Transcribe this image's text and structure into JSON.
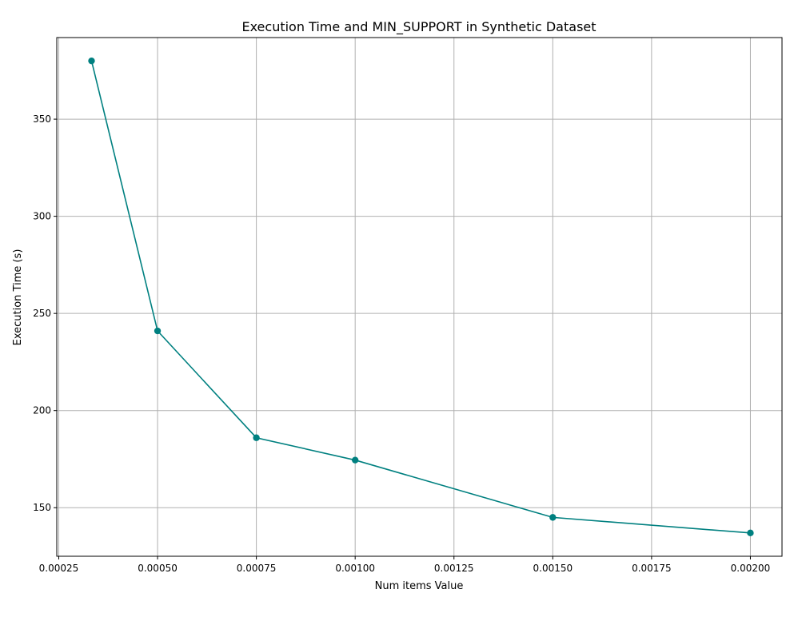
{
  "chart_data": {
    "type": "line",
    "title": "Execution Time and MIN_SUPPORT in Synthetic Dataset",
    "xlabel": "Num items Value",
    "ylabel": "Execution Time (s)",
    "xlim": [
      0.000245,
      0.00208
    ],
    "ylim": [
      125,
      392
    ],
    "grid": true,
    "x_ticks": [
      0.00025,
      0.0005,
      0.00075,
      0.001,
      0.00125,
      0.0015,
      0.00175,
      0.002
    ],
    "x_tick_labels": [
      "0.00025",
      "0.00050",
      "0.00075",
      "0.00100",
      "0.00125",
      "0.00150",
      "0.00175",
      "0.00200"
    ],
    "y_ticks": [
      150,
      200,
      250,
      300,
      350
    ],
    "y_tick_labels": [
      "150",
      "200",
      "250",
      "300",
      "350"
    ],
    "series": [
      {
        "color": "#008080",
        "marker": "circle",
        "x": [
          0.000333,
          0.0005,
          0.00075,
          0.001,
          0.0015,
          0.002
        ],
        "y": [
          380,
          241,
          186,
          174.5,
          145,
          137
        ]
      }
    ]
  }
}
